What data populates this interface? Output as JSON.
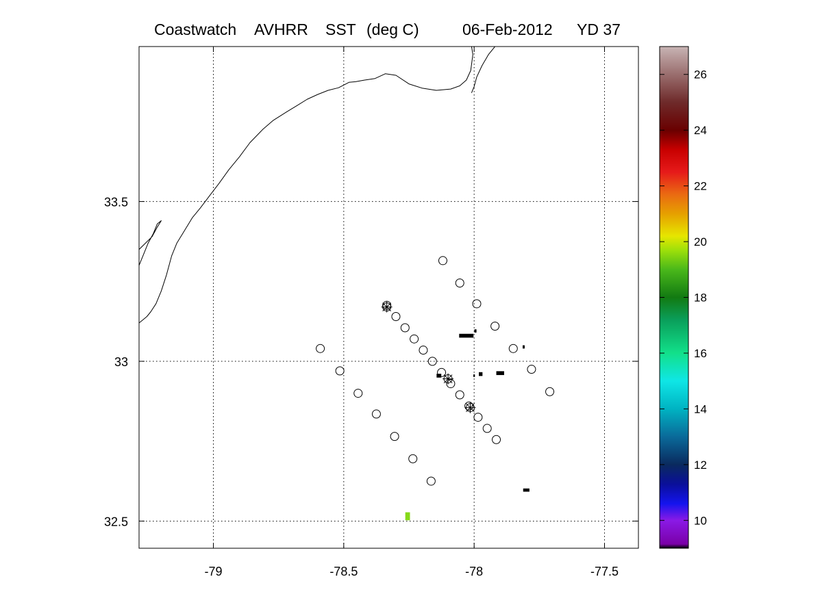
{
  "title": {
    "parts": [
      "Coastwatch",
      "AVHRR",
      "SST",
      "(deg C)",
      "06-Feb-2012",
      "YD 37"
    ]
  },
  "map": {
    "lon_range": [
      -79.285,
      -77.37
    ],
    "lat_range": [
      32.415,
      33.985
    ],
    "lon_ticks": [
      {
        "value": -79.0,
        "label": "-79"
      },
      {
        "value": -78.5,
        "label": "-78.5"
      },
      {
        "value": -78.0,
        "label": "-78"
      },
      {
        "value": -77.5,
        "label": "-77.5"
      }
    ],
    "lat_ticks": [
      {
        "value": 33.5,
        "label": "33.5"
      },
      {
        "value": 33.0,
        "label": "33"
      },
      {
        "value": 32.5,
        "label": "32.5"
      }
    ],
    "grid": "dotted",
    "coastline": [
      [
        -78.01,
        33.985
      ],
      [
        -78.005,
        33.96
      ],
      [
        -78.013,
        33.91
      ],
      [
        -78.03,
        33.88
      ],
      [
        -78.055,
        33.862
      ],
      [
        -78.09,
        33.852
      ],
      [
        -78.145,
        33.848
      ],
      [
        -78.2,
        33.855
      ],
      [
        -78.25,
        33.868
      ],
      [
        -78.3,
        33.895
      ],
      [
        -78.34,
        33.9
      ],
      [
        -78.38,
        33.885
      ],
      [
        -78.42,
        33.88
      ],
      [
        -78.455,
        33.875
      ],
      [
        -78.48,
        33.873
      ],
      [
        -78.52,
        33.856
      ],
      [
        -78.56,
        33.848
      ],
      [
        -78.6,
        33.835
      ],
      [
        -78.64,
        33.82
      ],
      [
        -78.68,
        33.8
      ],
      [
        -78.72,
        33.78
      ],
      [
        -78.77,
        33.754
      ],
      [
        -78.81,
        33.726
      ],
      [
        -78.86,
        33.684
      ],
      [
        -78.9,
        33.64
      ],
      [
        -78.94,
        33.6
      ],
      [
        -78.98,
        33.555
      ],
      [
        -79.01,
        33.523
      ],
      [
        -79.05,
        33.48
      ],
      [
        -79.08,
        33.45
      ],
      [
        -79.11,
        33.41
      ],
      [
        -79.14,
        33.37
      ],
      [
        -79.16,
        33.33
      ],
      [
        -79.18,
        33.27
      ],
      [
        -79.2,
        33.22
      ],
      [
        -79.22,
        33.18
      ],
      [
        -79.24,
        33.155
      ],
      [
        -79.255,
        33.14
      ],
      [
        -79.27,
        33.13
      ],
      [
        -79.285,
        33.12
      ]
    ],
    "outer_banks": [
      [
        -77.92,
        33.985
      ],
      [
        -77.945,
        33.96
      ],
      [
        -77.97,
        33.925
      ],
      [
        -77.99,
        33.89
      ],
      [
        -78.0,
        33.86
      ],
      [
        -78.01,
        33.84
      ]
    ],
    "inlet": [
      [
        -79.285,
        33.35
      ],
      [
        -79.26,
        33.37
      ],
      [
        -79.235,
        33.39
      ],
      [
        -79.215,
        33.42
      ],
      [
        -79.2,
        33.44
      ],
      [
        -79.215,
        33.43
      ],
      [
        -79.23,
        33.4
      ],
      [
        -79.25,
        33.37
      ],
      [
        -79.27,
        33.33
      ],
      [
        -79.285,
        33.3
      ]
    ],
    "station_lines": [
      {
        "name": "",
        "stations": [
          [
            -78.12,
            33.315
          ],
          [
            -78.055,
            33.245
          ],
          [
            -77.99,
            33.18
          ],
          [
            -77.92,
            33.11
          ],
          [
            -77.85,
            33.04
          ],
          [
            -77.78,
            32.975
          ],
          [
            -77.71,
            32.905
          ]
        ]
      },
      {
        "name": "",
        "stations": [
          [
            -78.335,
            33.175
          ],
          [
            -78.3,
            33.14
          ],
          [
            -78.265,
            33.105
          ],
          [
            -78.23,
            33.07
          ],
          [
            -78.195,
            33.035
          ],
          [
            -78.16,
            33.0
          ],
          [
            -78.125,
            32.965
          ],
          [
            -78.09,
            32.93
          ],
          [
            -78.055,
            32.895
          ],
          [
            -78.02,
            32.86
          ],
          [
            -77.985,
            32.825
          ],
          [
            -77.95,
            32.79
          ],
          [
            -77.915,
            32.755
          ]
        ]
      },
      {
        "name": "",
        "stations": [
          [
            -78.59,
            33.04
          ],
          [
            -78.515,
            32.97
          ],
          [
            -78.445,
            32.9
          ],
          [
            -78.375,
            32.835
          ],
          [
            -78.305,
            32.765
          ],
          [
            -78.235,
            32.695
          ],
          [
            -78.165,
            32.625
          ]
        ]
      }
    ],
    "star_stations": [
      [
        -78.335,
        33.17
      ],
      [
        -78.1,
        32.945
      ],
      [
        -78.015,
        32.855
      ]
    ],
    "sst_pixels": [
      {
        "lon": -78.03,
        "lat": 33.08,
        "w": 0.055,
        "h": 0.012,
        "color": "#000000"
      },
      {
        "lon": -77.995,
        "lat": 33.095,
        "w": 0.008,
        "h": 0.01,
        "color": "#000000"
      },
      {
        "lon": -77.81,
        "lat": 33.045,
        "w": 0.008,
        "h": 0.01,
        "color": "#000000"
      },
      {
        "lon": -78.135,
        "lat": 32.955,
        "w": 0.018,
        "h": 0.012,
        "color": "#000000"
      },
      {
        "lon": -78.0,
        "lat": 32.955,
        "w": 0.006,
        "h": 0.008,
        "color": "#000000"
      },
      {
        "lon": -77.975,
        "lat": 32.96,
        "w": 0.014,
        "h": 0.012,
        "color": "#000000"
      },
      {
        "lon": -77.9,
        "lat": 32.963,
        "w": 0.03,
        "h": 0.012,
        "color": "#000000"
      },
      {
        "lon": -77.8,
        "lat": 32.597,
        "w": 0.024,
        "h": 0.01,
        "color": "#000000"
      },
      {
        "lon": -78.255,
        "lat": 32.515,
        "w": 0.018,
        "h": 0.025,
        "color": "#86d91a"
      }
    ]
  },
  "colorbar": {
    "min": 9,
    "max": 27,
    "ticks": [
      {
        "value": 10,
        "label": "10"
      },
      {
        "value": 12,
        "label": "12"
      },
      {
        "value": 14,
        "label": "14"
      },
      {
        "value": 16,
        "label": "16"
      },
      {
        "value": 18,
        "label": "18"
      },
      {
        "value": 20,
        "label": "20"
      },
      {
        "value": 22,
        "label": "22"
      },
      {
        "value": 24,
        "label": "24"
      },
      {
        "value": 26,
        "label": "26"
      }
    ],
    "stops": [
      {
        "value": 9.0,
        "color": "#000000"
      },
      {
        "value": 9.15,
        "color": "#7a00a8"
      },
      {
        "value": 10.0,
        "color": "#8a1ae6"
      },
      {
        "value": 10.6,
        "color": "#1414ee"
      },
      {
        "value": 11.3,
        "color": "#0a0f9a"
      },
      {
        "value": 12.0,
        "color": "#0a2a5e"
      },
      {
        "value": 13.0,
        "color": "#0a6a9a"
      },
      {
        "value": 14.0,
        "color": "#00b3c2"
      },
      {
        "value": 15.0,
        "color": "#0fe6e6"
      },
      {
        "value": 16.0,
        "color": "#12e08a"
      },
      {
        "value": 17.2,
        "color": "#0a9e5a"
      },
      {
        "value": 18.0,
        "color": "#127a12"
      },
      {
        "value": 19.0,
        "color": "#4ab81a"
      },
      {
        "value": 19.7,
        "color": "#9ee00a"
      },
      {
        "value": 20.2,
        "color": "#e6e600"
      },
      {
        "value": 21.0,
        "color": "#e6a000"
      },
      {
        "value": 21.7,
        "color": "#ea6a12"
      },
      {
        "value": 22.5,
        "color": "#e61a1a"
      },
      {
        "value": 23.3,
        "color": "#c80000"
      },
      {
        "value": 24.0,
        "color": "#6a0000"
      },
      {
        "value": 25.0,
        "color": "#6e2a2a"
      },
      {
        "value": 26.0,
        "color": "#9a6e6e"
      },
      {
        "value": 27.0,
        "color": "#c8b4b4"
      }
    ]
  }
}
